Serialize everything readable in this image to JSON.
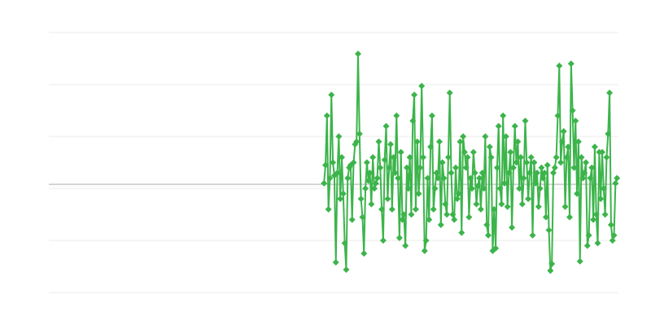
{
  "chart_data": {
    "type": "line",
    "title": "",
    "xlabel": "",
    "ylabel": "",
    "ylim": [
      -2,
      3
    ],
    "xlim": [
      -186,
      199
    ],
    "grid": true,
    "legend": "none",
    "reference_line": 0.08,
    "marker": "diamond",
    "colors": {
      "series": "#3cb44b",
      "grid": "#ebebeb",
      "reference": "#aaaaaa"
    },
    "series": [
      {
        "values": [
          0.1,
          0.45,
          1.4,
          -0.4,
          0.2,
          1.8,
          0.5,
          0.25,
          -1.42,
          0.3,
          1.0,
          -0.2,
          0.6,
          -0.1,
          -1.05,
          -1.56,
          0.2,
          0.4,
          0.45,
          -0.6,
          0.5,
          0.85,
          0.9,
          2.59,
          1.05,
          -0.2,
          -0.55,
          -1.25,
          0.0,
          0.5,
          0.15,
          0.3,
          -0.3,
          0.6,
          0.0,
          0.1,
          0.2,
          0.9,
          0.4,
          -0.4,
          -1.0,
          0.55,
          1.2,
          -0.2,
          0.4,
          0.85,
          -0.4,
          0.6,
          0.3,
          1.4,
          0.2,
          -0.95,
          0.7,
          -0.6,
          -0.5,
          -1.1,
          0.4,
          0.0,
          0.6,
          -0.5,
          1.3,
          1.8,
          -0.4,
          0.9,
          -0.1,
          0.4,
          1.97,
          0.6,
          -1.2,
          -1.0,
          0.2,
          -0.6,
          0.8,
          1.4,
          -0.4,
          0.0,
          0.3,
          0.2,
          0.9,
          -0.7,
          0.5,
          0.2,
          -0.3,
          -0.5,
          0.6,
          1.84,
          0.3,
          -0.5,
          -0.6,
          0.4,
          -0.2,
          -0.1,
          0.9,
          -0.85,
          1.0,
          0.7,
          0.4,
          0.6,
          -0.55,
          0.2,
          0.0,
          0.7,
          0.3,
          -0.3,
          0.05,
          0.2,
          -0.4,
          0.3,
          0.0,
          1.0,
          -0.7,
          -0.9,
          0.8,
          0.6,
          -1.2,
          -0.4,
          -1.15,
          0.4,
          1.2,
          0.0,
          -0.3,
          1.4,
          0.1,
          1.0,
          -0.35,
          0.3,
          0.7,
          -0.75,
          0.4,
          1.2,
          0.5,
          0.9,
          0.0,
          0.6,
          -0.3,
          0.2,
          1.3,
          0.5,
          -0.2,
          0.3,
          0.6,
          -0.9,
          0.5,
          0.1,
          0.3,
          -0.35,
          0.0,
          0.4,
          0.2,
          0.3,
          -0.55,
          0.45,
          -0.8,
          -1.58,
          -1.45,
          0.3,
          0.4,
          0.6,
          1.4,
          2.36,
          0.5,
          0.9,
          1.1,
          -0.35,
          0.6,
          0.8,
          -0.55,
          2.4,
          1.5,
          0.4,
          1.3,
          -0.1,
          0.9,
          -1.4,
          0.6,
          0.2,
          0.3,
          0.5,
          -1.1,
          -0.9,
          0.2,
          0.4,
          -0.6,
          0.8,
          -0.5,
          -1.05,
          0.7,
          -0.2,
          0.7,
          0.0,
          -0.5,
          0.6,
          1.05,
          1.84,
          -0.7,
          -1.0,
          -0.9,
          0.1,
          0.2
        ]
      }
    ]
  }
}
